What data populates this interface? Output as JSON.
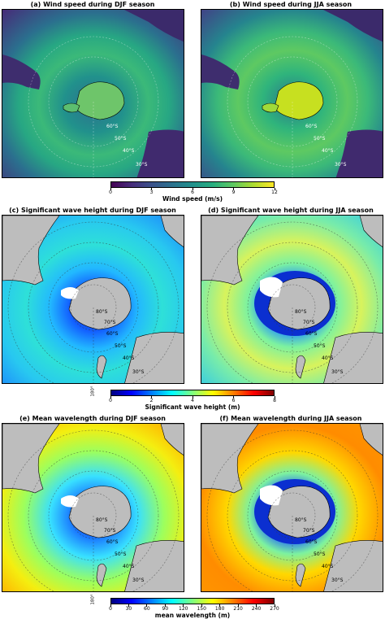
{
  "chart_data": [
    {
      "type": "heatmap",
      "panels": [
        {
          "title": "(a) Wind speed during DJF season",
          "lat_labels": [
            "60°S",
            "50°S",
            "40°S",
            "30°S"
          ]
        },
        {
          "title": "(b) Wind speed during JJA season",
          "lat_labels": [
            "60°S",
            "50°S",
            "40°S",
            "30°S"
          ]
        }
      ],
      "colorbar": {
        "label": "Wind speed (m/s)",
        "ticks": [
          "0",
          "3",
          "6",
          "9",
          "12"
        ],
        "range": [
          0,
          12
        ],
        "colormap": "viridis"
      }
    },
    {
      "type": "heatmap",
      "panels": [
        {
          "title": "(c) Significant wave height during DJF season",
          "lat_labels": [
            "80°S",
            "70°S",
            "60°S",
            "50°S",
            "40°S",
            "30°S"
          ]
        },
        {
          "title": "(d) Significant wave height during JJA season",
          "lat_labels": [
            "80°S",
            "70°S",
            "60°S",
            "50°S",
            "40°S",
            "30°S"
          ]
        }
      ],
      "lon_label": "180°",
      "colorbar": {
        "label": "Significant wave height (m)",
        "ticks": [
          "0",
          "2",
          "4",
          "6",
          "8"
        ],
        "range": [
          0,
          8
        ],
        "colormap": "jet"
      }
    },
    {
      "type": "heatmap",
      "panels": [
        {
          "title": "(e) Mean wavelength during DJF season",
          "lat_labels": [
            "80°S",
            "70°S",
            "60°S",
            "50°S",
            "40°S",
            "30°S"
          ]
        },
        {
          "title": "(f) Mean wavelength during JJA season",
          "lat_labels": [
            "80°S",
            "70°S",
            "60°S",
            "50°S",
            "40°S",
            "30°S"
          ]
        }
      ],
      "lon_label": "180°",
      "colorbar": {
        "label": "mean wavelength (m)",
        "ticks": [
          "0",
          "30",
          "60",
          "90",
          "120",
          "150",
          "180",
          "210",
          "240",
          "270"
        ],
        "range": [
          0,
          270
        ],
        "colormap": "jet"
      }
    }
  ]
}
